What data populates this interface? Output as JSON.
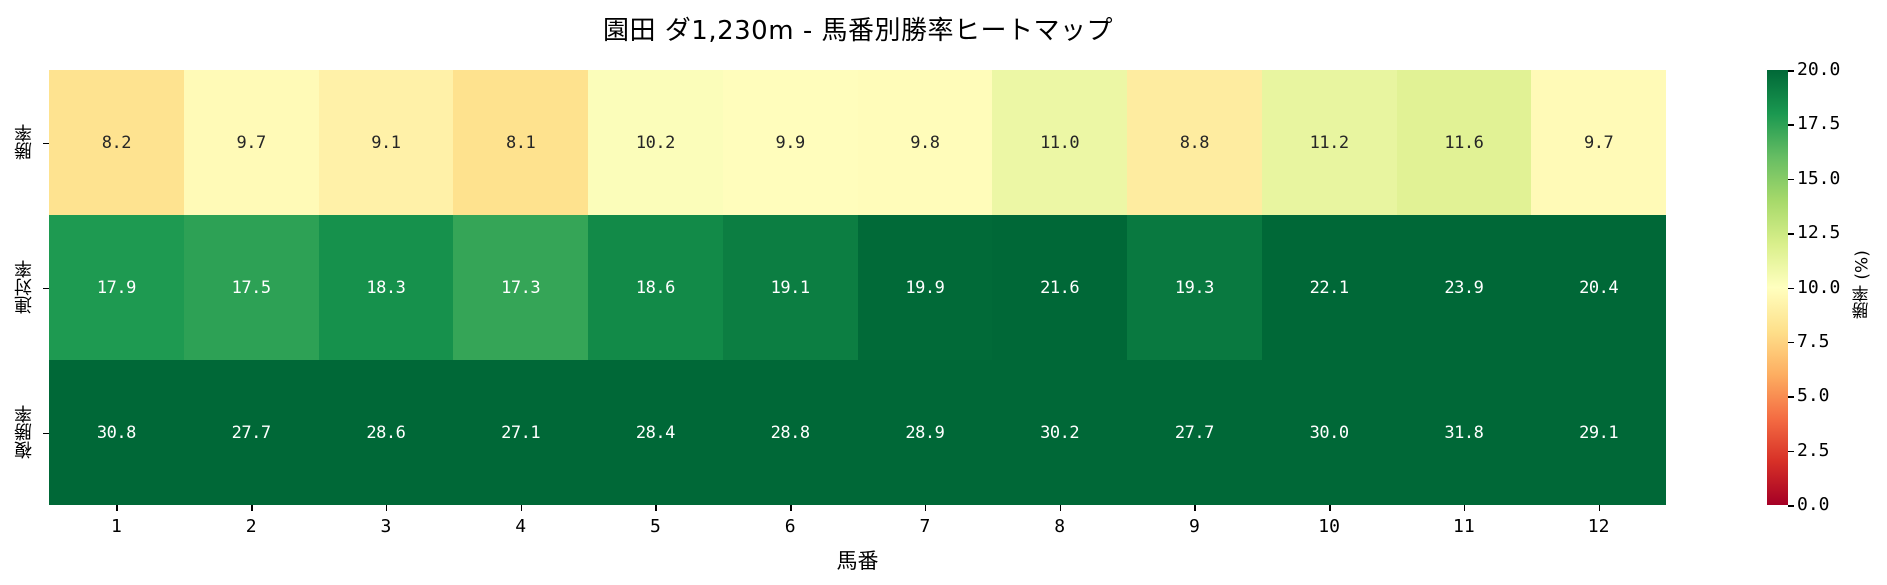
{
  "chart_data": {
    "type": "heatmap",
    "title": "園田 ダ1,230m - 馬番別勝率ヒートマップ",
    "xlabel": "馬番",
    "ylabel": "",
    "x_categories": [
      "1",
      "2",
      "3",
      "4",
      "5",
      "6",
      "7",
      "8",
      "9",
      "10",
      "11",
      "12"
    ],
    "y_categories": [
      "勝率",
      "連対率",
      "複勝率"
    ],
    "values": [
      [
        8.2,
        9.7,
        9.1,
        8.1,
        10.2,
        9.9,
        9.8,
        11.0,
        8.8,
        11.2,
        11.6,
        9.7
      ],
      [
        17.9,
        17.5,
        18.3,
        17.3,
        18.6,
        19.1,
        19.9,
        21.6,
        19.3,
        22.1,
        23.9,
        20.4
      ],
      [
        30.8,
        27.7,
        28.6,
        27.1,
        28.4,
        28.8,
        28.9,
        30.2,
        27.7,
        30.0,
        31.8,
        29.1
      ]
    ],
    "annotations_format": "0.1f",
    "colormap": "RdYlGn",
    "vmin": 0,
    "vmax": 20,
    "colorbar": {
      "label": "勝率 (%)",
      "ticks": [
        "0.0",
        "2.5",
        "5.0",
        "7.5",
        "10.0",
        "12.5",
        "15.0",
        "17.5",
        "20.0"
      ]
    }
  },
  "colormap_stops": [
    "#a50026",
    "#d73027",
    "#f46d43",
    "#fdae61",
    "#fee08b",
    "#ffffbf",
    "#d9ef8b",
    "#a6d96a",
    "#66bd63",
    "#1a9850",
    "#006837"
  ]
}
